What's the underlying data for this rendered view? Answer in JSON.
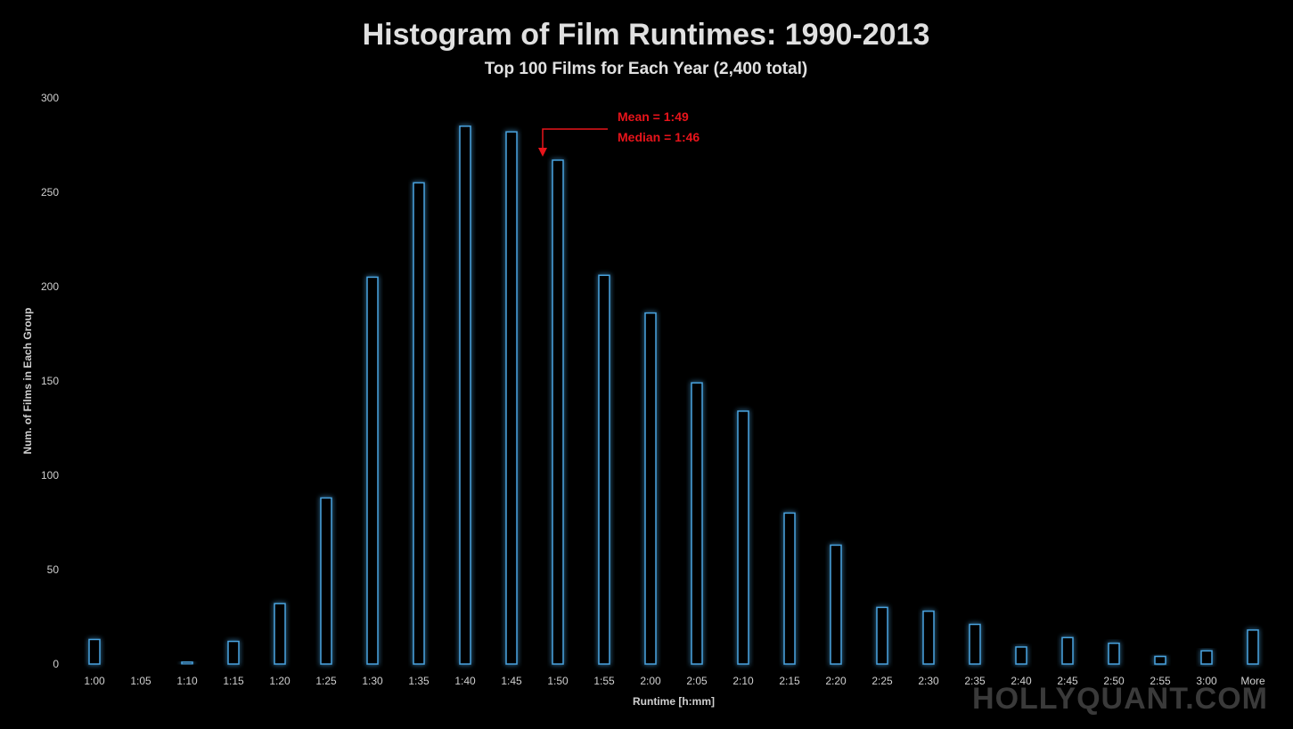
{
  "chart_data": {
    "type": "bar",
    "title": "Histogram of Film Runtimes: 1990-2013",
    "subtitle": "Top 100 Films for Each Year (2,400 total)",
    "xlabel": "Runtime [h:mm]",
    "ylabel": "Num. of Films in Each Group",
    "ylim": [
      0,
      300
    ],
    "yticks": [
      0,
      50,
      100,
      150,
      200,
      250,
      300
    ],
    "categories": [
      "1:00",
      "1:05",
      "1:10",
      "1:15",
      "1:20",
      "1:25",
      "1:30",
      "1:35",
      "1:40",
      "1:45",
      "1:50",
      "1:55",
      "2:00",
      "2:05",
      "2:10",
      "2:15",
      "2:20",
      "2:25",
      "2:30",
      "2:35",
      "2:40",
      "2:45",
      "2:50",
      "2:55",
      "3:00",
      "More"
    ],
    "values": [
      13,
      0,
      1,
      12,
      32,
      88,
      205,
      255,
      285,
      282,
      267,
      206,
      186,
      149,
      134,
      80,
      63,
      30,
      28,
      21,
      9,
      14,
      11,
      4,
      7,
      18
    ],
    "grid": false,
    "annotations": [
      {
        "text_line1": "Mean = 1:49",
        "text_line2": "Median = 1:46",
        "color": "#e8141b",
        "points_to": "1:50"
      }
    ],
    "bar_color": "#4aa3df"
  },
  "watermark": "HOLLYQUANT.COM"
}
